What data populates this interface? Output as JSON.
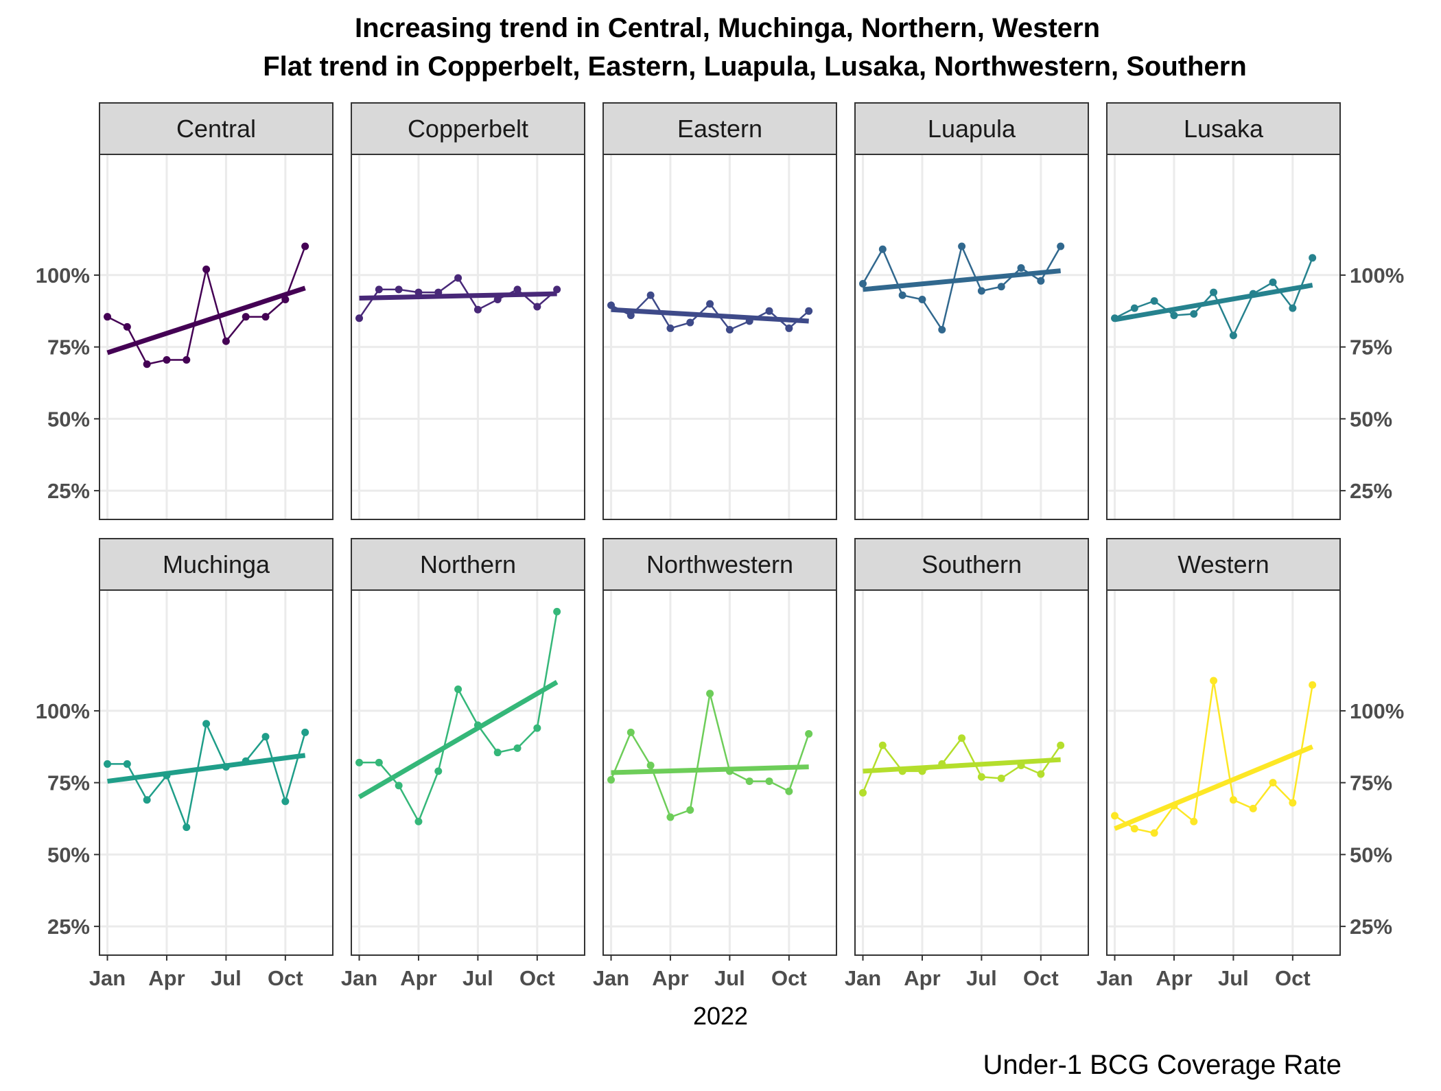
{
  "chart_data": {
    "type": "line",
    "title_lines": [
      "Increasing trend in Central, Muchinga, Northern, Western",
      "Flat trend in Copperbelt, Eastern, Luapula, Lusaka, Northwestern, Southern"
    ],
    "xlabel": "2022",
    "caption": "Under-1 BCG Coverage Rate",
    "x_ticks": [
      "Jan",
      "Apr",
      "Jul",
      "Oct"
    ],
    "x_tick_months": [
      1,
      4,
      7,
      10
    ],
    "y_ticks": [
      "25%",
      "50%",
      "75%",
      "100%"
    ],
    "y_tick_values": [
      25,
      50,
      75,
      100
    ],
    "xlim": [
      0.6,
      12.4
    ],
    "ylim": [
      15,
      142
    ],
    "x": [
      "2022-01",
      "2022-02",
      "2022-03",
      "2022-04",
      "2022-05",
      "2022-06",
      "2022-07",
      "2022-08",
      "2022-09",
      "2022-10",
      "2022-11"
    ],
    "x_month_index": [
      1,
      2,
      3,
      4,
      5,
      6,
      7,
      8,
      9,
      10,
      11
    ],
    "grid": true,
    "legend": "none",
    "series": [
      {
        "name": "Central",
        "color": "#440154",
        "values": [
          85.5,
          82,
          69,
          70.5,
          70.5,
          102,
          77,
          85.5,
          85.5,
          91.5,
          110
        ],
        "trend": [
          73,
          95.5
        ]
      },
      {
        "name": "Copperbelt",
        "color": "#482878",
        "values": [
          85,
          95,
          95,
          94,
          94,
          99,
          88,
          91.5,
          95,
          89,
          95
        ],
        "trend": [
          92,
          93.5
        ]
      },
      {
        "name": "Eastern",
        "color": "#3E4A89",
        "values": [
          89.5,
          86,
          93,
          81.5,
          83.5,
          90,
          81,
          84,
          87.5,
          81.5,
          87.5
        ],
        "trend": [
          88,
          84
        ]
      },
      {
        "name": "Luapula",
        "color": "#31688E",
        "values": [
          97,
          109,
          93,
          91.5,
          81,
          110,
          94.5,
          96,
          102.5,
          98,
          110
        ],
        "trend": [
          95,
          101.5
        ]
      },
      {
        "name": "Lusaka",
        "color": "#26828E",
        "values": [
          85,
          88.5,
          91,
          86,
          86.5,
          94,
          79,
          93.5,
          97.5,
          88.5,
          106
        ],
        "trend": [
          84.5,
          96.5
        ]
      },
      {
        "name": "Muchinga",
        "color": "#1F9E89",
        "values": [
          81.5,
          81.5,
          69,
          77.5,
          59.5,
          95.5,
          80.5,
          82.5,
          91,
          68.5,
          92.5
        ],
        "trend": [
          75.5,
          84.5
        ]
      },
      {
        "name": "Northern",
        "color": "#35B779",
        "values": [
          82,
          82,
          74,
          61.5,
          79,
          107.5,
          95,
          85.5,
          87,
          94,
          134.5
        ],
        "trend": [
          70,
          110
        ]
      },
      {
        "name": "Northwestern",
        "color": "#6DCD59",
        "values": [
          76,
          92.5,
          81,
          63,
          65.5,
          106,
          79,
          75.5,
          75.5,
          72,
          92
        ],
        "trend": [
          78.5,
          80.5
        ]
      },
      {
        "name": "Southern",
        "color": "#B4DE2C",
        "values": [
          71.5,
          88,
          79,
          79,
          81.5,
          90.5,
          77,
          76.5,
          81,
          78,
          88
        ],
        "trend": [
          79,
          83
        ]
      },
      {
        "name": "Western",
        "color": "#FDE725",
        "values": [
          63.5,
          59,
          57.5,
          67,
          61.5,
          110.5,
          69,
          66,
          75,
          68,
          109
        ],
        "trend": [
          59,
          87.5
        ]
      }
    ]
  }
}
